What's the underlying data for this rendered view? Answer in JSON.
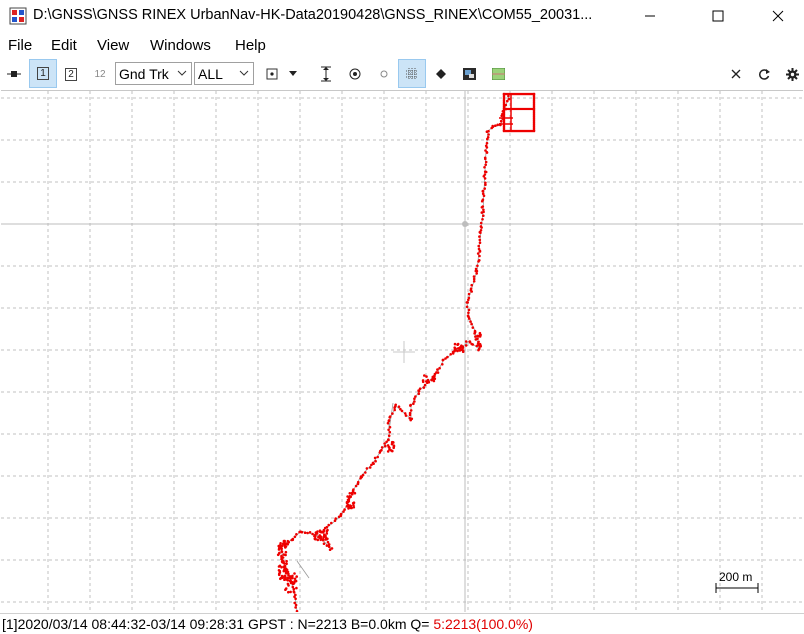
{
  "window": {
    "title": "D:\\GNSS\\GNSS RINEX UrbanNav-HK-Data20190428\\GNSS_RINEX\\COM55_20031...",
    "minimize_icon": "minimize-icon",
    "maximize_icon": "maximize-icon",
    "close_icon": "close-icon"
  },
  "menu": {
    "items": [
      "File",
      "Edit",
      "View",
      "Windows",
      "Help"
    ]
  },
  "toolbar": {
    "btn1_label": "1",
    "btn2_label": "2",
    "btn12_label": "12",
    "plot_type": "Gnd Trk",
    "sat_filter": "ALL"
  },
  "plot": {
    "scale_label": "200 m",
    "track_color": "#ee0000",
    "grid_color": "#c0c0c0"
  },
  "status": {
    "text": "[1]2020/03/14 08:44:32-03/14 09:28:31 GPST : N=2213 B=0.0km Q= ",
    "quality": "5:2213(100.0%)",
    "quality_color": "#e00000"
  }
}
